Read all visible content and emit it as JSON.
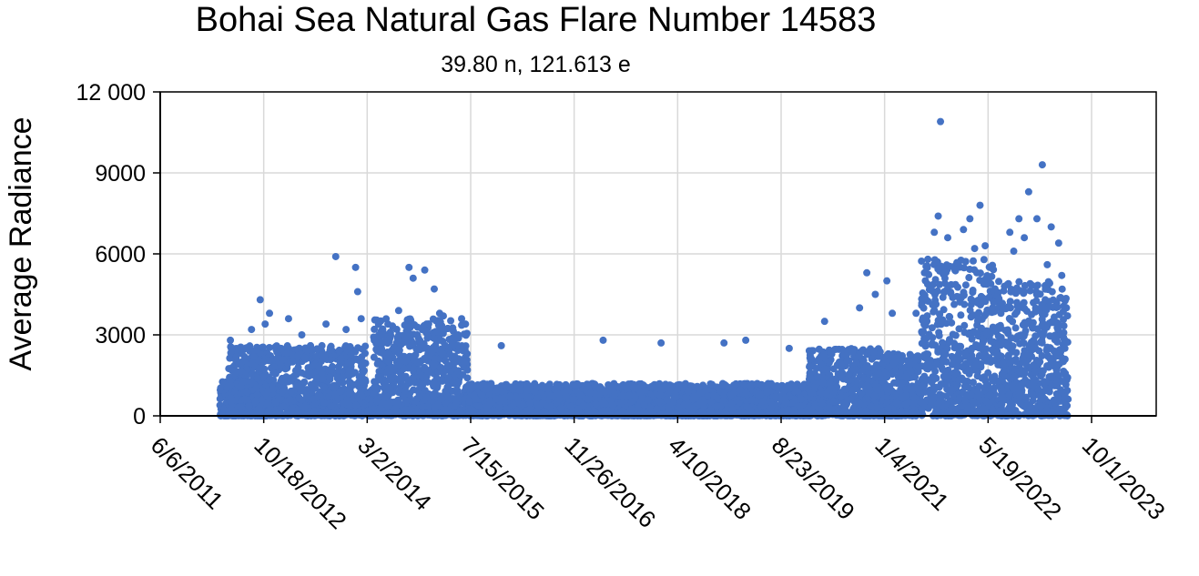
{
  "chart_data": {
    "type": "scatter",
    "title": "Bohai Sea Natural Gas Flare Number 14583",
    "subtitle": "39.80 n, 121.613 e",
    "ylabel": "Average Radiance",
    "xlabel": "",
    "y_ticks": [
      0,
      3000,
      6000,
      9000,
      12000
    ],
    "y_tick_labels": [
      "0",
      "3000",
      "6000",
      "9000",
      "12 000"
    ],
    "ylim": [
      0,
      12000
    ],
    "x_tick_labels": [
      "6/6/2011",
      "10/18/2012",
      "3/2/2014",
      "7/15/2015",
      "11/26/2016",
      "4/10/2018",
      "8/23/2019",
      "1/4/2021",
      "5/19/2022",
      "10/1/2023"
    ],
    "x_ticks": [
      "2011-06-06",
      "2012-10-18",
      "2014-03-02",
      "2015-07-15",
      "2016-11-26",
      "2018-04-10",
      "2019-08-23",
      "2021-01-04",
      "2022-05-19",
      "2023-10-01"
    ],
    "xlim": [
      "2011-06-06",
      "2023-10-01"
    ],
    "grid": true,
    "legend": "none",
    "marker_color": "#4472C4",
    "series": [
      {
        "points": [
          [
            "2012-05-10",
            2800
          ],
          [
            "2012-07-05",
            2000
          ],
          [
            "2012-08-20",
            3200
          ],
          [
            "2012-10-01",
            4300
          ],
          [
            "2012-10-25",
            3400
          ],
          [
            "2012-11-15",
            3800
          ],
          [
            "2013-01-10",
            2500
          ],
          [
            "2013-02-15",
            3600
          ],
          [
            "2013-04-20",
            3000
          ],
          [
            "2013-06-01",
            2600
          ],
          [
            "2013-08-15",
            3400
          ],
          [
            "2013-10-01",
            5900
          ],
          [
            "2013-11-20",
            3200
          ],
          [
            "2014-01-05",
            5500
          ],
          [
            "2014-01-15",
            4600
          ],
          [
            "2014-02-01",
            3600
          ],
          [
            "2014-04-05",
            2800
          ],
          [
            "2014-06-10",
            3400
          ],
          [
            "2014-08-01",
            3900
          ],
          [
            "2014-09-20",
            5500
          ],
          [
            "2014-10-10",
            5100
          ],
          [
            "2014-12-05",
            5400
          ],
          [
            "2015-01-20",
            4700
          ],
          [
            "2015-02-15",
            3800
          ],
          [
            "2015-03-05",
            3700
          ],
          [
            "2015-05-15",
            3000
          ],
          [
            "2015-06-20",
            3400
          ],
          [
            "2015-12-10",
            2600
          ],
          [
            "2017-04-15",
            2800
          ],
          [
            "2018-01-20",
            2700
          ],
          [
            "2018-11-20",
            2700
          ],
          [
            "2019-03-05",
            2800
          ],
          [
            "2019-10-01",
            2500
          ],
          [
            "2020-03-20",
            3500
          ],
          [
            "2020-09-05",
            4000
          ],
          [
            "2020-10-10",
            5300
          ],
          [
            "2020-11-20",
            4500
          ],
          [
            "2021-01-15",
            5000
          ],
          [
            "2021-02-10",
            3800
          ],
          [
            "2021-06-05",
            3800
          ],
          [
            "2021-08-01",
            5800
          ],
          [
            "2021-09-01",
            6800
          ],
          [
            "2021-09-20",
            7400
          ],
          [
            "2021-10-01",
            10900
          ],
          [
            "2021-11-05",
            6600
          ],
          [
            "2021-12-10",
            5400
          ],
          [
            "2022-01-20",
            6900
          ],
          [
            "2022-02-20",
            7300
          ],
          [
            "2022-03-15",
            6200
          ],
          [
            "2022-04-10",
            7800
          ],
          [
            "2022-05-05",
            6300
          ],
          [
            "2022-06-15",
            4200
          ],
          [
            "2022-07-20",
            3800
          ],
          [
            "2022-09-01",
            6800
          ],
          [
            "2022-09-20",
            6100
          ],
          [
            "2022-10-15",
            7300
          ],
          [
            "2022-11-10",
            6600
          ],
          [
            "2022-12-01",
            8300
          ],
          [
            "2023-01-10",
            7300
          ],
          [
            "2023-02-05",
            9300
          ],
          [
            "2023-03-01",
            5600
          ],
          [
            "2023-03-20",
            7000
          ],
          [
            "2023-04-25",
            6400
          ],
          [
            "2023-05-10",
            5200
          ],
          [
            "2023-05-25",
            2500
          ]
        ],
        "dense_bands": [
          {
            "start": "2012-03-20",
            "end": "2012-11-30",
            "y_min": 0,
            "y_max": 1300
          },
          {
            "start": "2012-05-01",
            "end": "2014-02-28",
            "y_min": 0,
            "y_max": 2600
          },
          {
            "start": "2014-03-01",
            "end": "2014-03-31",
            "y_min": 0,
            "y_max": 1000
          },
          {
            "start": "2014-04-01",
            "end": "2015-06-30",
            "y_min": 0,
            "y_max": 3600
          },
          {
            "start": "2015-07-01",
            "end": "2019-12-31",
            "y_min": 0,
            "y_max": 1200
          },
          {
            "start": "2020-01-01",
            "end": "2020-12-31",
            "y_min": 0,
            "y_max": 2500
          },
          {
            "start": "2021-01-01",
            "end": "2021-06-30",
            "y_min": 0,
            "y_max": 2300
          },
          {
            "start": "2021-07-01",
            "end": "2022-06-30",
            "y_min": 0,
            "y_max": 5800
          },
          {
            "start": "2022-07-01",
            "end": "2023-06-10",
            "y_min": 0,
            "y_max": 5000
          }
        ]
      }
    ]
  }
}
